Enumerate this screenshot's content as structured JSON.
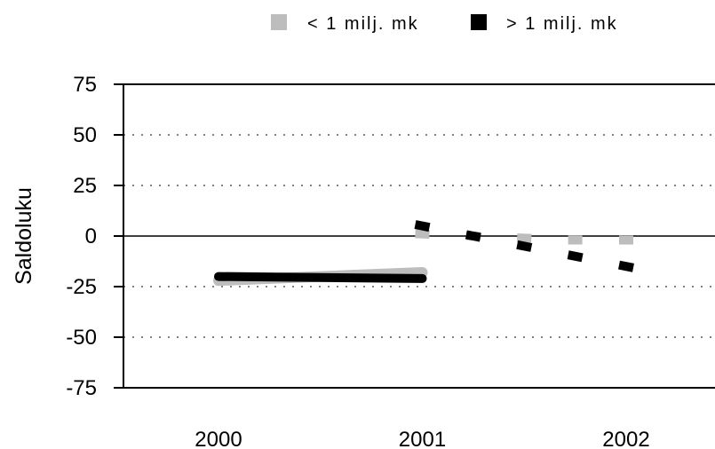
{
  "chart_data": {
    "type": "line",
    "title": "",
    "xlabel": "",
    "ylabel": "Saldoluku",
    "ylim": [
      -75,
      75
    ],
    "yticks": [
      75,
      50,
      25,
      0,
      -25,
      -50,
      -75
    ],
    "xticks": [
      "2000",
      "2001",
      "2002"
    ],
    "x_numeric_range": [
      2000,
      2002.5
    ],
    "grid": "horizontal dotted at 50, 25, -25, -50; solid zero line",
    "legend_position": "top",
    "series": [
      {
        "name": "< 1 milj. mk",
        "color": "#bdbdbd",
        "actual": {
          "x": [
            2000,
            2001
          ],
          "y": [
            -22,
            -18
          ]
        },
        "forecast": {
          "x": [
            2001,
            2001.25,
            2001.5,
            2001.75,
            2002
          ],
          "y": [
            1,
            0,
            -1,
            -2,
            -2
          ]
        }
      },
      {
        "name": "> 1 milj. mk",
        "color": "#000000",
        "actual": {
          "x": [
            2000,
            2001
          ],
          "y": [
            -20,
            -21
          ]
        },
        "forecast": {
          "x": [
            2001,
            2001.25,
            2001.5,
            2001.75,
            2002
          ],
          "y": [
            5,
            0,
            -5,
            -10,
            -15
          ]
        }
      }
    ]
  }
}
